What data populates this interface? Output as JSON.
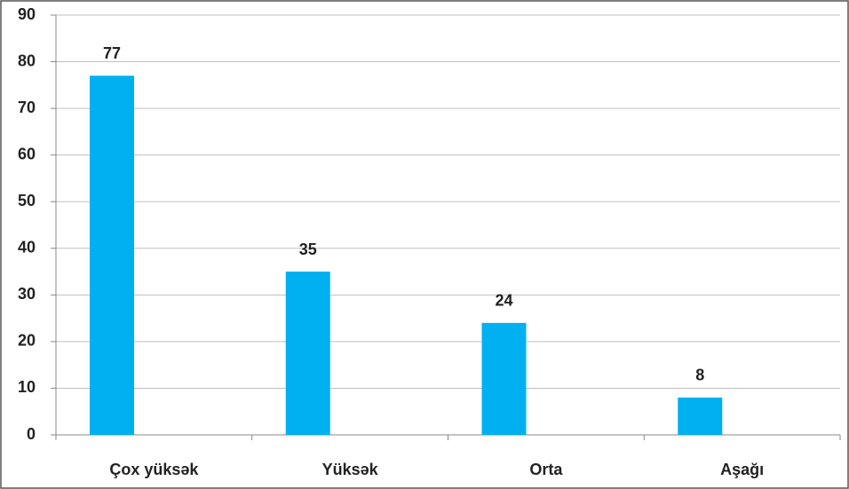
{
  "chart_data": {
    "type": "bar",
    "categories": [
      "Çox yüksək",
      "Yüksək",
      "Orta",
      "Aşağı"
    ],
    "values": [
      77,
      35,
      24,
      8
    ],
    "color": "#00b0f0",
    "ylim": [
      0,
      90
    ],
    "yticks": [
      0,
      10,
      20,
      30,
      40,
      50,
      60,
      70,
      80,
      90
    ],
    "grid": true
  }
}
